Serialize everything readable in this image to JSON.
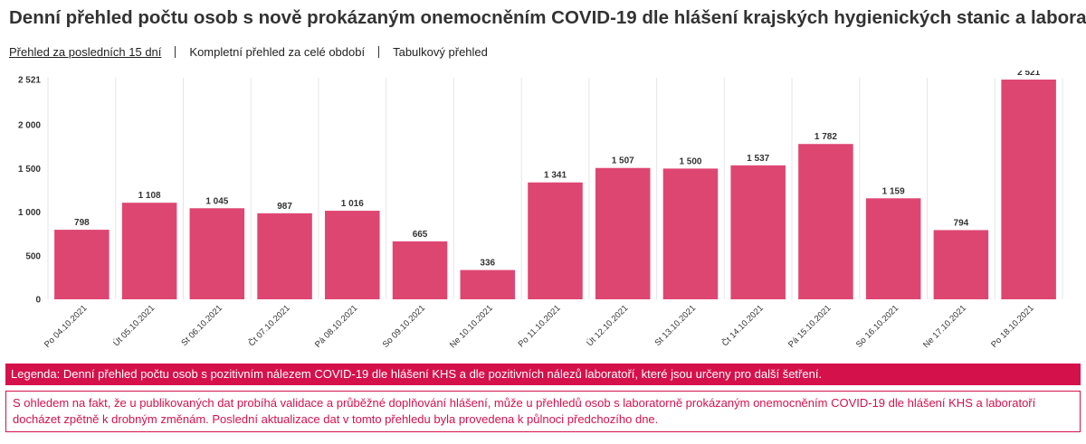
{
  "header": {
    "title": "Denní přehled počtu osob s nově prokázaným onemocněním COVID-19 dle hlášení krajských hygienických stanic a laboratoří"
  },
  "tabs": [
    {
      "label": "Přehled za posledních 15 dní",
      "active": true
    },
    {
      "label": "Kompletní přehled za celé období",
      "active": false
    },
    {
      "label": "Tabulkový přehled",
      "active": false
    }
  ],
  "colors": {
    "bar": "#de4672",
    "accent": "#d5114b"
  },
  "chart_data": {
    "type": "bar",
    "categories": [
      "Po 04.10.2021",
      "Út 05.10.2021",
      "St 06.10.2021",
      "Čt 07.10.2021",
      "Pá 08.10.2021",
      "So 09.10.2021",
      "Ne 10.10.2021",
      "Po 11.10.2021",
      "Út 12.10.2021",
      "St 13.10.2021",
      "Čt 14.10.2021",
      "Pá 15.10.2021",
      "So 16.10.2021",
      "Ne 17.10.2021",
      "Po 18.10.2021"
    ],
    "values": [
      798,
      1108,
      1045,
      987,
      1016,
      665,
      336,
      1341,
      1507,
      1500,
      1537,
      1782,
      1159,
      794,
      2521
    ],
    "value_labels": [
      "798",
      "1 108",
      "1 045",
      "987",
      "1 016",
      "665",
      "336",
      "1 341",
      "1 507",
      "1 500",
      "1 537",
      "1 782",
      "1 159",
      "794",
      "2 521"
    ],
    "y_ticks": [
      0,
      500,
      1000,
      1500,
      2000,
      2521
    ],
    "y_tick_labels": [
      "0",
      "500",
      "1 000",
      "1 500",
      "2 000",
      "2 521"
    ],
    "ylim": [
      0,
      2521
    ],
    "grid": "vertical"
  },
  "legend": {
    "text": "Legenda: Denní přehled počtu osob s pozitivním nálezem COVID-19 dle hlášení KHS a dle pozitivních nálezů laboratoří, které jsou určeny pro další šetření."
  },
  "note": {
    "text": "S ohledem na fakt, že u publikovaných dat probíhá validace a průběžné doplňování hlášení, může u přehledů osob s laboratorně prokázaným onemocněním COVID-19 dle hlášení KHS a laboratoří docházet zpětně k drobným změnám. Poslední aktualizace dat v tomto přehledu byla provedena k půlnoci předchozího dne."
  }
}
